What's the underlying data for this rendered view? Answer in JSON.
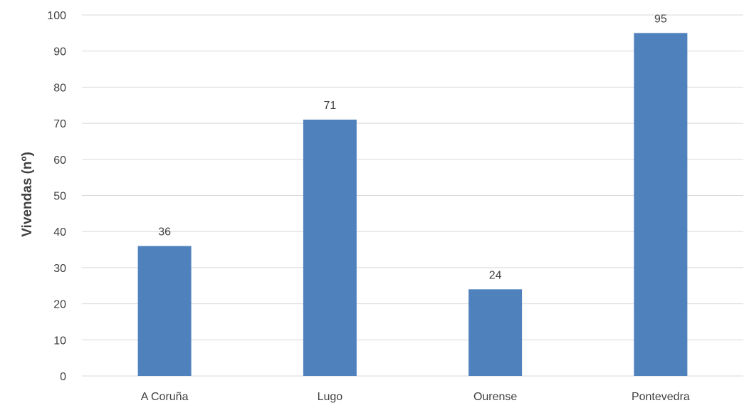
{
  "chart_data": {
    "type": "bar",
    "categories": [
      "A Coruña",
      "Lugo",
      "Ourense",
      "Pontevedra"
    ],
    "values": [
      36,
      71,
      24,
      95
    ],
    "title": "",
    "xlabel": "",
    "ylabel": "Vivendas (nº)",
    "ylim": [
      0,
      100
    ],
    "yticks": [
      0,
      10,
      20,
      30,
      40,
      50,
      60,
      70,
      80,
      90,
      100
    ],
    "grid": true,
    "data_labels": true,
    "legend": "none",
    "bar_color": "#4f81bd"
  }
}
